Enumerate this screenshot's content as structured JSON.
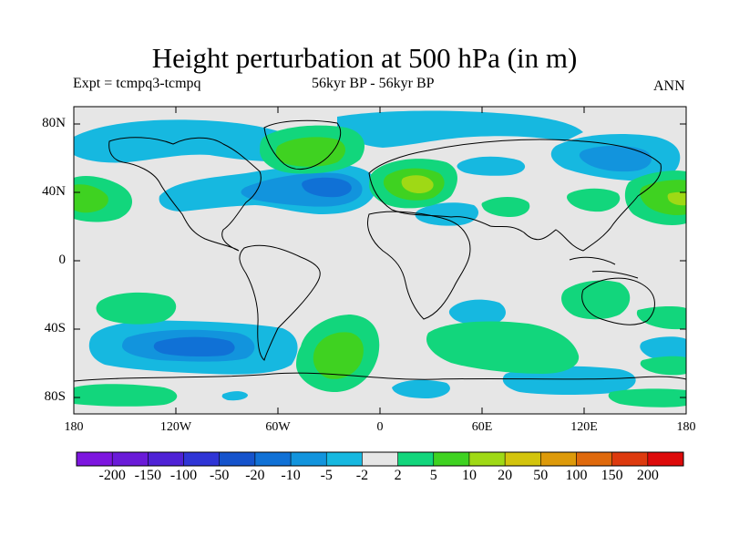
{
  "title": "Height perturbation at 500 hPa (in m)",
  "subtitle_left": "Expt = tcmpq3-tcmpq",
  "subtitle_center": "56kyr BP - 56kyr BP",
  "subtitle_right": "ANN",
  "lat_ticks": [
    "80N",
    "40N",
    "0",
    "40S",
    "80S"
  ],
  "lon_ticks": [
    "180",
    "120W",
    "60W",
    "0",
    "60E",
    "120E",
    "180"
  ],
  "colorbar": {
    "labels": [
      "-200",
      "-150",
      "-100",
      "-50",
      "-20",
      "-10",
      "-5",
      "-2",
      "2",
      "5",
      "10",
      "20",
      "50",
      "100",
      "150",
      "200"
    ],
    "colors": [
      "#7d16df",
      "#6a1bd8",
      "#4f22d6",
      "#2f35d6",
      "#1553cc",
      "#1071d6",
      "#1294dd",
      "#16b8e0",
      "#e6e6e6",
      "#12d67c",
      "#3fd221",
      "#9fd915",
      "#d3c40d",
      "#dd9a0a",
      "#df690c",
      "#dd3a0e",
      "#dd0a0a"
    ]
  },
  "colors": {
    "background": "#e6e6e6",
    "neg2": "#16b8e0",
    "neg5": "#1294dd",
    "neg10": "#1071d6",
    "pos2": "#12d67c",
    "pos5": "#3fd221",
    "pos10": "#9fd915"
  }
}
